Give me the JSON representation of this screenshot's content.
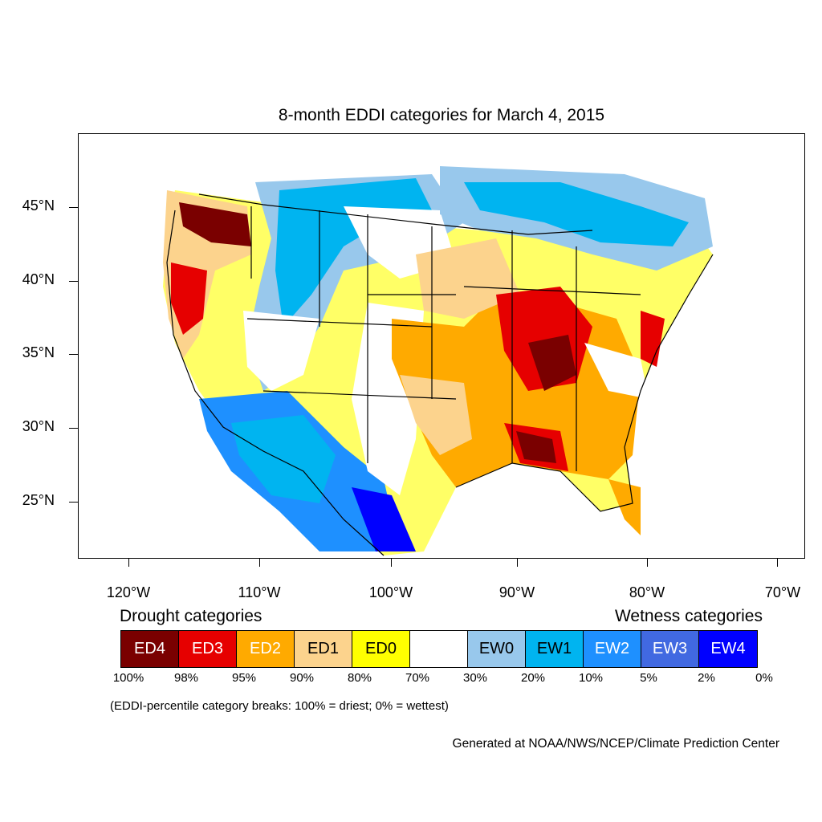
{
  "title": "8-month EDDI categories for March 4, 2015",
  "y_axis_labels": [
    "45°N",
    "40°N",
    "35°N",
    "30°N",
    "25°N"
  ],
  "x_axis_labels": [
    "120°W",
    "110°W",
    "100°W",
    "90°W",
    "80°W",
    "70°W"
  ],
  "legend": {
    "drought_title": "Drought categories",
    "wetness_title": "Wetness categories",
    "categories": [
      {
        "label": "ED4",
        "color": "#7a0000",
        "text_color": "#ffffff"
      },
      {
        "label": "ED3",
        "color": "#e60000",
        "text_color": "#ffffff"
      },
      {
        "label": "ED2",
        "color": "#ffaa00",
        "text_color": "#ffffff"
      },
      {
        "label": "ED1",
        "color": "#fcd38d",
        "text_color": "#000000"
      },
      {
        "label": "ED0",
        "color": "#ffff00",
        "text_color": "#000000"
      },
      {
        "label": "",
        "color": "#ffffff",
        "text_color": "#000000"
      },
      {
        "label": "EW0",
        "color": "#98c8ec",
        "text_color": "#000000"
      },
      {
        "label": "EW1",
        "color": "#00b4f0",
        "text_color": "#000000"
      },
      {
        "label": "EW2",
        "color": "#1e90ff",
        "text_color": "#ffffff"
      },
      {
        "label": "EW3",
        "color": "#4169e1",
        "text_color": "#ffffff"
      },
      {
        "label": "EW4",
        "color": "#0000ff",
        "text_color": "#ffffff"
      }
    ],
    "percentiles": [
      "100%",
      "98%",
      "95%",
      "90%",
      "80%",
      "70%",
      "30%",
      "20%",
      "10%",
      "5%",
      "2%",
      "0%"
    ]
  },
  "note": "(EDDI-percentile category breaks: 100% = driest; 0% = wettest)",
  "credit": "Generated at NOAA/NWS/NCEP/Climate Prediction Center"
}
